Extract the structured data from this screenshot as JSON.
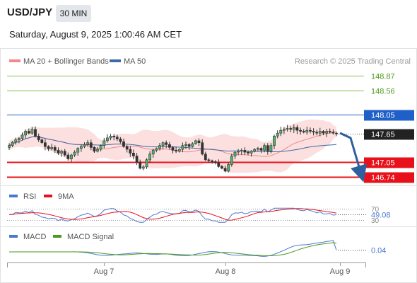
{
  "header": {
    "pair": "USD/JPY",
    "timeframe": "30 MIN",
    "datetime": "Saturday, August 9, 2025 1:00:46 AM CET"
  },
  "legend": {
    "ma20_bb": "MA 20 + Bollinger Bands",
    "ma50": "MA 50",
    "credit": "Research © 2025 Trading Central"
  },
  "colors": {
    "resistance_green": "#7dc24b",
    "pivot_blue": "#1f5fc8",
    "support_red": "#e8101a",
    "price_box": "#222222",
    "bollinger_fill": "#fbd9d9",
    "ma20": "#f08a8a",
    "ma50": "#3e6aa8",
    "rsi": "#4a78d0",
    "rsi_ma": "#e8101a",
    "macd": "#4a78d0",
    "macd_signal": "#4a9a1c",
    "arrow": "#2e5f9e"
  },
  "chart_data": [
    {
      "type": "candlestick",
      "title": "USD/JPY 30 MIN",
      "x_ticks": [
        "Aug 7",
        "Aug 8",
        "Aug 9"
      ],
      "y_range": [
        146.65,
        148.95
      ],
      "levels": [
        {
          "value": 148.87,
          "label": "148.87",
          "kind": "resistance"
        },
        {
          "value": 148.56,
          "label": "148.56",
          "kind": "resistance"
        },
        {
          "value": 148.05,
          "label": "148.05",
          "kind": "pivot"
        },
        {
          "value": 147.65,
          "label": "147.65",
          "kind": "last"
        },
        {
          "value": 147.05,
          "label": "147.05",
          "kind": "support"
        },
        {
          "value": 146.74,
          "label": "146.74",
          "kind": "support"
        }
      ],
      "close": [
        147.4,
        147.47,
        147.52,
        147.55,
        147.62,
        147.7,
        147.66,
        147.74,
        147.6,
        147.52,
        147.46,
        147.38,
        147.33,
        147.36,
        147.3,
        147.24,
        147.28,
        147.2,
        147.12,
        147.2,
        147.26,
        147.34,
        147.38,
        147.42,
        147.46,
        147.36,
        147.28,
        147.32,
        147.4,
        147.5,
        147.56,
        147.6,
        147.58,
        147.54,
        147.48,
        147.38,
        147.32,
        147.24,
        147.18,
        147.05,
        146.92,
        146.95,
        147.1,
        147.22,
        147.3,
        147.34,
        147.4,
        147.46,
        147.42,
        147.36,
        147.3,
        147.28,
        147.32,
        147.4,
        147.42,
        147.38,
        147.44,
        147.5,
        147.46,
        147.22,
        147.1,
        147.08,
        147.06,
        147.04,
        146.96,
        146.92,
        146.86,
        147.0,
        147.18,
        147.26,
        147.28,
        147.3,
        147.26,
        147.24,
        147.28,
        147.32,
        147.34,
        147.3,
        147.4,
        147.28,
        147.4,
        147.6,
        147.66,
        147.72,
        147.74,
        147.76,
        147.74,
        147.78,
        147.72,
        147.7,
        147.68,
        147.72,
        147.7,
        147.68,
        147.66,
        147.7,
        147.66,
        147.7,
        147.68,
        147.66,
        147.65
      ]
    },
    {
      "type": "line",
      "title": "RSI",
      "series": [
        {
          "name": "RSI"
        },
        {
          "name": "9MA"
        }
      ],
      "levels": [
        70,
        30
      ],
      "last_value": 49.08
    },
    {
      "type": "line",
      "title": "MACD",
      "series": [
        {
          "name": "MACD"
        },
        {
          "name": "MACD Signal"
        }
      ],
      "last_value": 0.04
    }
  ]
}
